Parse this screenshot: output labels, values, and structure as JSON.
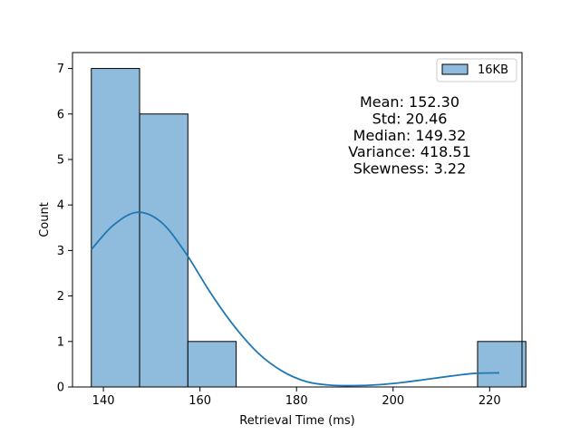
{
  "chart_data": {
    "type": "histogram",
    "xlabel": "Retrieval Time (ms)",
    "ylabel": "Count",
    "xlim": [
      133.6,
      226.7
    ],
    "ylim": [
      0,
      7.35
    ],
    "xticks": [
      140,
      160,
      180,
      200,
      220
    ],
    "yticks": [
      0,
      1,
      2,
      3,
      4,
      5,
      6,
      7
    ],
    "bins": [
      {
        "start": 137.5,
        "end": 147.5,
        "count": 7
      },
      {
        "start": 147.5,
        "end": 157.5,
        "count": 6
      },
      {
        "start": 157.5,
        "end": 167.5,
        "count": 1
      },
      {
        "start": 167.5,
        "end": 177.5,
        "count": 0
      },
      {
        "start": 177.5,
        "end": 187.5,
        "count": 0
      },
      {
        "start": 187.5,
        "end": 197.5,
        "count": 0
      },
      {
        "start": 197.5,
        "end": 207.5,
        "count": 0
      },
      {
        "start": 207.5,
        "end": 217.5,
        "count": 0
      },
      {
        "start": 217.5,
        "end": 227.5,
        "count": 1
      }
    ],
    "kde": {
      "x": [
        137.5,
        142,
        147,
        152,
        157,
        162,
        167,
        172,
        177,
        182,
        187,
        192,
        197,
        202,
        207,
        212,
        217,
        222
      ],
      "y": [
        3.02,
        3.55,
        3.84,
        3.62,
        2.95,
        2.1,
        1.35,
        0.75,
        0.35,
        0.12,
        0.04,
        0.03,
        0.05,
        0.1,
        0.17,
        0.24,
        0.3,
        0.31
      ]
    },
    "legend": {
      "label": "16KB",
      "position": "upper right"
    },
    "stats_text": [
      "Mean: 152.30",
      "Std: 20.46",
      "Median: 149.32",
      "Variance: 418.51",
      "Skewness: 3.22"
    ],
    "colors": {
      "bar_fill": "#8fbcdc",
      "bar_edge": "#000000",
      "kde_line": "#1f77b4"
    },
    "grid": false
  }
}
